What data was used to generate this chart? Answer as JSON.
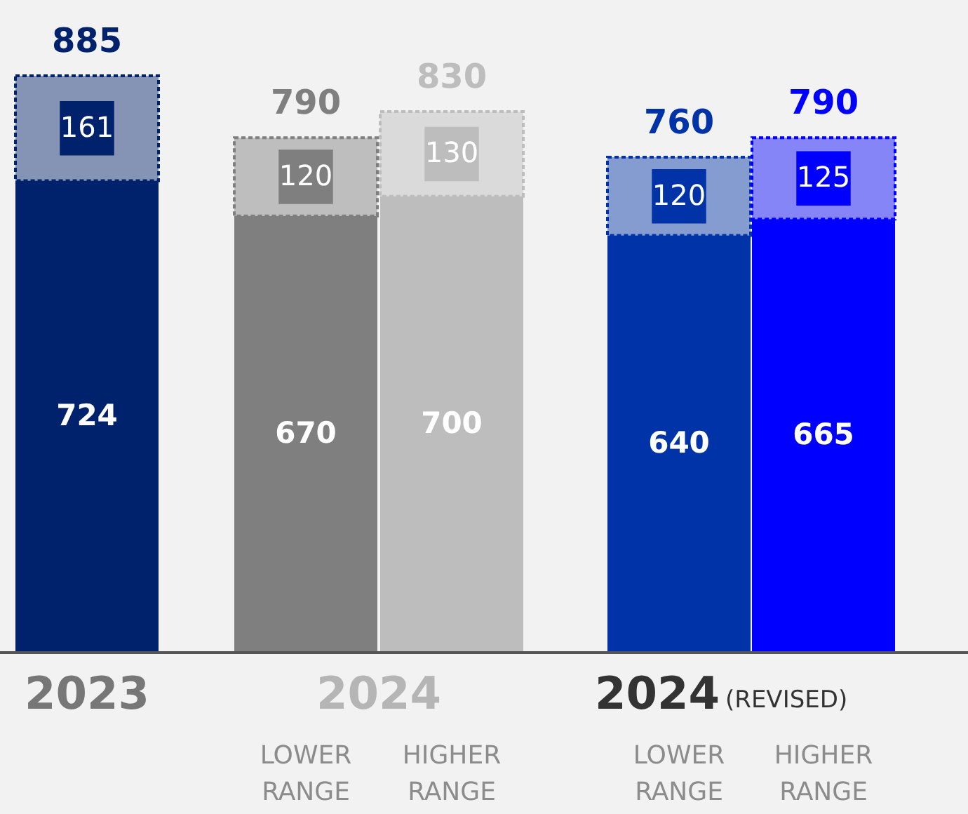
{
  "chart_data": {
    "type": "bar",
    "stacked": true,
    "data_labels": true,
    "categories": [
      "2023",
      "LOWER RANGE",
      "HIGHER RANGE",
      "LOWER RANGE",
      "HIGHER RANGE"
    ],
    "series": [
      {
        "colors": [
          "#00216b",
          "#7f7f7f",
          "#bdbdbd",
          "#0033a8",
          "#0000ff"
        ],
        "values": [
          724,
          670,
          700,
          640,
          665
        ]
      },
      {
        "colors": [
          "#00216b",
          "#7f7f7f",
          "#bdbdbd",
          "#0033a8",
          "#0000ff"
        ],
        "values": [
          161,
          120,
          130,
          120,
          125
        ]
      }
    ],
    "totals": [
      "885",
      "790",
      "830",
      "760",
      "790"
    ],
    "annotations": [
      "2024",
      "2024",
      "(REVISED)"
    ]
  }
}
